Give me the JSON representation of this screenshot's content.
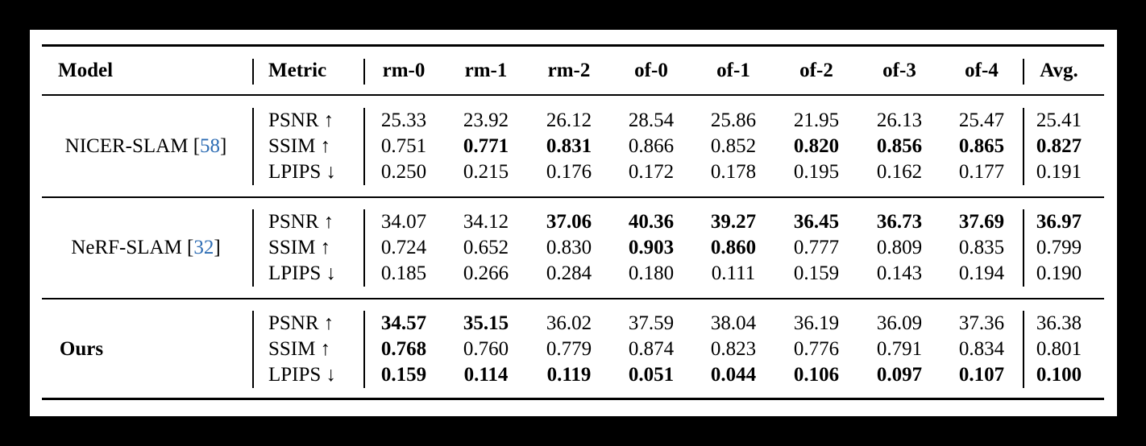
{
  "table": {
    "header": [
      "Model",
      "Metric",
      "rm-0",
      "rm-1",
      "rm-2",
      "of-0",
      "of-1",
      "of-2",
      "of-3",
      "of-4",
      "Avg."
    ],
    "groups": [
      {
        "model": [
          "NICER-SLAM [",
          "58",
          "]"
        ],
        "model_bold": false,
        "rows": [
          {
            "metric": "PSNR ↑",
            "values": [
              "25.33",
              "23.92",
              "26.12",
              "28.54",
              "25.86",
              "21.95",
              "26.13",
              "25.47",
              "25.41"
            ],
            "bold": [
              false,
              false,
              false,
              false,
              false,
              false,
              false,
              false,
              false
            ]
          },
          {
            "metric": "SSIM ↑",
            "values": [
              "0.751",
              "0.771",
              "0.831",
              "0.866",
              "0.852",
              "0.820",
              "0.856",
              "0.865",
              "0.827"
            ],
            "bold": [
              false,
              true,
              true,
              false,
              false,
              true,
              true,
              true,
              true
            ]
          },
          {
            "metric": "LPIPS ↓",
            "values": [
              "0.250",
              "0.215",
              "0.176",
              "0.172",
              "0.178",
              "0.195",
              "0.162",
              "0.177",
              "0.191"
            ],
            "bold": [
              false,
              false,
              false,
              false,
              false,
              false,
              false,
              false,
              false
            ]
          }
        ]
      },
      {
        "model": [
          "NeRF-SLAM [",
          "32",
          "]"
        ],
        "model_bold": false,
        "rows": [
          {
            "metric": "PSNR ↑",
            "values": [
              "34.07",
              "34.12",
              "37.06",
              "40.36",
              "39.27",
              "36.45",
              "36.73",
              "37.69",
              "36.97"
            ],
            "bold": [
              false,
              false,
              true,
              true,
              true,
              true,
              true,
              true,
              true
            ]
          },
          {
            "metric": "SSIM ↑",
            "values": [
              "0.724",
              "0.652",
              "0.830",
              "0.903",
              "0.860",
              "0.777",
              "0.809",
              "0.835",
              "0.799"
            ],
            "bold": [
              false,
              false,
              false,
              true,
              true,
              false,
              false,
              false,
              false
            ]
          },
          {
            "metric": "LPIPS ↓",
            "values": [
              "0.185",
              "0.266",
              "0.284",
              "0.180",
              "0.111",
              "0.159",
              "0.143",
              "0.194",
              "0.190"
            ],
            "bold": [
              false,
              false,
              false,
              false,
              false,
              false,
              false,
              false,
              false
            ]
          }
        ]
      },
      {
        "model": [
          "Ours"
        ],
        "model_bold": true,
        "rows": [
          {
            "metric": "PSNR ↑",
            "values": [
              "34.57",
              "35.15",
              "36.02",
              "37.59",
              "38.04",
              "36.19",
              "36.09",
              "37.36",
              "36.38"
            ],
            "bold": [
              true,
              true,
              false,
              false,
              false,
              false,
              false,
              false,
              false
            ]
          },
          {
            "metric": "SSIM ↑",
            "values": [
              "0.768",
              "0.760",
              "0.779",
              "0.874",
              "0.823",
              "0.776",
              "0.791",
              "0.834",
              "0.801"
            ],
            "bold": [
              true,
              false,
              false,
              false,
              false,
              false,
              false,
              false,
              false
            ]
          },
          {
            "metric": "LPIPS ↓",
            "values": [
              "0.159",
              "0.114",
              "0.119",
              "0.051",
              "0.044",
              "0.106",
              "0.097",
              "0.107",
              "0.100"
            ],
            "bold": [
              true,
              true,
              true,
              true,
              true,
              true,
              true,
              true,
              true
            ]
          }
        ]
      }
    ]
  }
}
